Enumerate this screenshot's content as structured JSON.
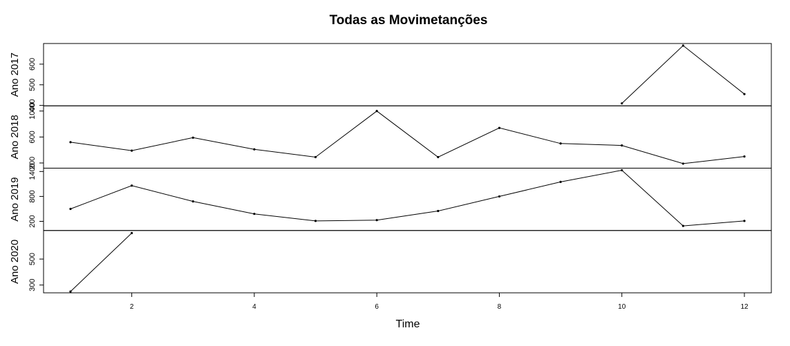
{
  "chart_data": {
    "type": "line",
    "title": "Todas as Movimetanções",
    "xlabel": "Time",
    "x": [
      1,
      2,
      3,
      4,
      5,
      6,
      7,
      8,
      9,
      10,
      11,
      12
    ],
    "xlim": [
      0.56,
      12.44
    ],
    "xticks": [
      2,
      4,
      6,
      8,
      10,
      12
    ],
    "grid": false,
    "legend": "none",
    "series": [
      {
        "name": "Ano 2017",
        "values": [
          null,
          null,
          null,
          null,
          null,
          null,
          null,
          null,
          null,
          410,
          690,
          455
        ],
        "ylim": [
          398,
          700
        ],
        "yticks": [
          400,
          500,
          600
        ],
        "ytick_labels": [
          "400",
          "500",
          "600"
        ]
      },
      {
        "name": "Ano 2018",
        "values": [
          520,
          390,
          590,
          410,
          290,
          1000,
          290,
          740,
          500,
          470,
          190,
          300
        ],
        "ylim": [
          120,
          1080
        ],
        "yticks": [
          200,
          600,
          1000
        ],
        "ytick_labels": [
          "200",
          "600",
          "1000"
        ]
      },
      {
        "name": "Ano 2019",
        "values": [
          500,
          1060,
          680,
          380,
          210,
          230,
          450,
          800,
          1150,
          1430,
          90,
          210
        ],
        "ylim": [
          -20,
          1480
        ],
        "yticks": [
          200,
          800,
          1400
        ],
        "ytick_labels": [
          "200",
          "800",
          "1400"
        ]
      },
      {
        "name": "Ano 2020",
        "values": [
          250,
          700,
          null,
          null,
          null,
          null,
          null,
          null,
          null,
          null,
          null,
          null
        ],
        "ylim": [
          240,
          720
        ],
        "yticks": [
          300,
          500
        ],
        "ytick_labels": [
          "300",
          "500"
        ]
      }
    ]
  }
}
